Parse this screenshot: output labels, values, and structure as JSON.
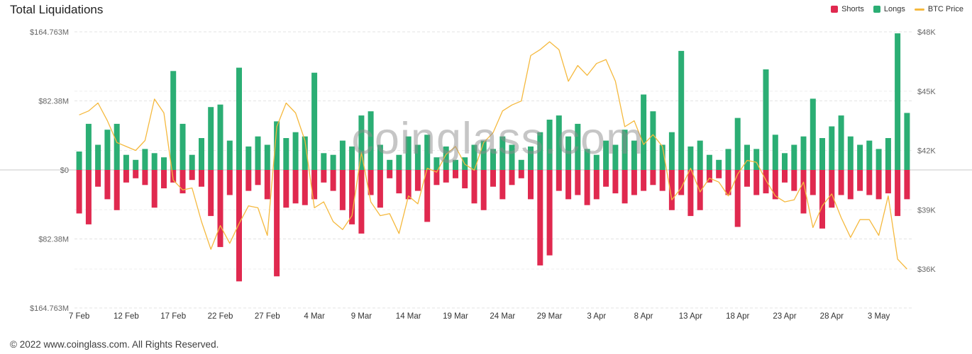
{
  "header": {
    "title": "Total Liquidations"
  },
  "legend": {
    "items": [
      {
        "label": "Shorts",
        "color": "#e0294f",
        "marker": "square"
      },
      {
        "label": "Longs",
        "color": "#2bae74",
        "marker": "square"
      },
      {
        "label": "BTC Price",
        "color": "#f5b93e",
        "marker": "line"
      }
    ]
  },
  "watermark": {
    "text": "coinglass.com"
  },
  "footer": {
    "copyright": "© 2022 www.coinglass.com. All Rights Reserved."
  },
  "chart_data": {
    "type": "mirrored-bar+line",
    "title": "Total Liquidations",
    "y_left": {
      "unit": "USD (millions)",
      "max": 164.763,
      "ticks": [
        164.763,
        82.38,
        0,
        -82.38,
        -164.763
      ],
      "labels": [
        "$164.763M",
        "$82.38M",
        "$0",
        "$82.38M",
        "$164.763M"
      ]
    },
    "y_right": {
      "unit": "BTC price (thousand USD)",
      "ticks": [
        48,
        45,
        42,
        39,
        36
      ],
      "labels": [
        "$48K",
        "$45K",
        "$42K",
        "$39K",
        "$36K"
      ]
    },
    "x_tick_labels": [
      "7 Feb",
      "12 Feb",
      "17 Feb",
      "22 Feb",
      "27 Feb",
      "4 Mar",
      "9 Mar",
      "14 Mar",
      "19 Mar",
      "24 Mar",
      "29 Mar",
      "3 Apr",
      "8 Apr",
      "13 Apr",
      "18 Apr",
      "23 Apr",
      "28 Apr",
      "3 May"
    ],
    "dates": [
      "7 Feb",
      "8 Feb",
      "9 Feb",
      "10 Feb",
      "11 Feb",
      "12 Feb",
      "13 Feb",
      "14 Feb",
      "15 Feb",
      "16 Feb",
      "17 Feb",
      "18 Feb",
      "19 Feb",
      "20 Feb",
      "21 Feb",
      "22 Feb",
      "23 Feb",
      "24 Feb",
      "25 Feb",
      "26 Feb",
      "27 Feb",
      "28 Feb",
      "1 Mar",
      "2 Mar",
      "3 Mar",
      "4 Mar",
      "5 Mar",
      "6 Mar",
      "7 Mar",
      "8 Mar",
      "9 Mar",
      "10 Mar",
      "11 Mar",
      "12 Mar",
      "13 Mar",
      "14 Mar",
      "15 Mar",
      "16 Mar",
      "17 Mar",
      "18 Mar",
      "19 Mar",
      "20 Mar",
      "21 Mar",
      "22 Mar",
      "23 Mar",
      "24 Mar",
      "25 Mar",
      "26 Mar",
      "27 Mar",
      "28 Mar",
      "29 Mar",
      "30 Mar",
      "31 Mar",
      "1 Apr",
      "2 Apr",
      "3 Apr",
      "4 Apr",
      "5 Apr",
      "6 Apr",
      "7 Apr",
      "8 Apr",
      "9 Apr",
      "10 Apr",
      "11 Apr",
      "12 Apr",
      "13 Apr",
      "14 Apr",
      "15 Apr",
      "16 Apr",
      "17 Apr",
      "18 Apr",
      "19 Apr",
      "20 Apr",
      "21 Apr",
      "22 Apr",
      "23 Apr",
      "24 Apr",
      "25 Apr",
      "26 Apr",
      "27 Apr",
      "28 Apr",
      "29 Apr",
      "30 Apr",
      "1 May",
      "2 May",
      "3 May",
      "4 May",
      "5 May",
      "6 May"
    ],
    "series": [
      {
        "name": "Shorts",
        "color": "#e0294f",
        "axis": "left",
        "direction": "down",
        "values": [
          52,
          65,
          20,
          35,
          48,
          15,
          10,
          18,
          45,
          22,
          15,
          28,
          12,
          20,
          55,
          92,
          30,
          133,
          25,
          18,
          35,
          127,
          45,
          40,
          42,
          35,
          15,
          25,
          48,
          65,
          76,
          30,
          45,
          10,
          28,
          35,
          25,
          62,
          18,
          15,
          10,
          22,
          40,
          48,
          20,
          35,
          18,
          10,
          35,
          114,
          102,
          25,
          35,
          30,
          42,
          35,
          20,
          28,
          40,
          30,
          25,
          18,
          25,
          48,
          30,
          55,
          48,
          15,
          10,
          30,
          68,
          20,
          30,
          28,
          35,
          15,
          25,
          52,
          30,
          70,
          45,
          30,
          35,
          25,
          30,
          35,
          28,
          55,
          35
        ]
      },
      {
        "name": "Longs",
        "color": "#2bae74",
        "axis": "left",
        "direction": "up",
        "values": [
          22,
          55,
          30,
          48,
          55,
          18,
          12,
          25,
          20,
          15,
          118,
          55,
          18,
          38,
          75,
          78,
          35,
          122,
          28,
          40,
          30,
          58,
          38,
          45,
          40,
          116,
          20,
          18,
          35,
          28,
          65,
          70,
          30,
          12,
          18,
          40,
          30,
          42,
          15,
          28,
          12,
          15,
          30,
          35,
          25,
          40,
          30,
          12,
          28,
          45,
          60,
          65,
          40,
          55,
          25,
          18,
          35,
          30,
          48,
          35,
          90,
          70,
          30,
          45,
          142,
          28,
          35,
          18,
          12,
          25,
          62,
          30,
          25,
          120,
          42,
          20,
          30,
          40,
          85,
          38,
          52,
          65,
          40,
          30,
          35,
          25,
          38,
          163,
          68
        ]
      },
      {
        "name": "BTC Price",
        "color": "#f5b93e",
        "axis": "right",
        "values": [
          43.8,
          44.0,
          44.4,
          43.5,
          42.4,
          42.2,
          42.0,
          42.5,
          44.6,
          43.9,
          40.5,
          40.0,
          40.1,
          38.4,
          37.0,
          38.2,
          37.3,
          38.3,
          39.2,
          39.1,
          37.7,
          43.2,
          44.4,
          43.9,
          42.5,
          39.1,
          39.4,
          38.4,
          38.0,
          38.7,
          41.9,
          39.4,
          38.7,
          38.8,
          37.8,
          39.7,
          39.3,
          41.1,
          40.9,
          41.8,
          42.2,
          41.3,
          41.0,
          42.4,
          42.9,
          44.0,
          44.3,
          44.5,
          46.8,
          47.1,
          47.5,
          47.1,
          45.5,
          46.3,
          45.8,
          46.4,
          46.6,
          45.5,
          43.2,
          43.5,
          42.3,
          42.8,
          42.2,
          39.5,
          40.1,
          41.1,
          39.9,
          40.6,
          40.4,
          39.7,
          40.8,
          41.5,
          41.4,
          40.5,
          39.7,
          39.4,
          39.5,
          40.4,
          38.1,
          39.2,
          39.8,
          38.6,
          37.6,
          38.5,
          38.5,
          37.7,
          39.7,
          36.5,
          36.0
        ]
      }
    ],
    "grid": "dashed-horizontal",
    "legend_position": "top-right"
  }
}
